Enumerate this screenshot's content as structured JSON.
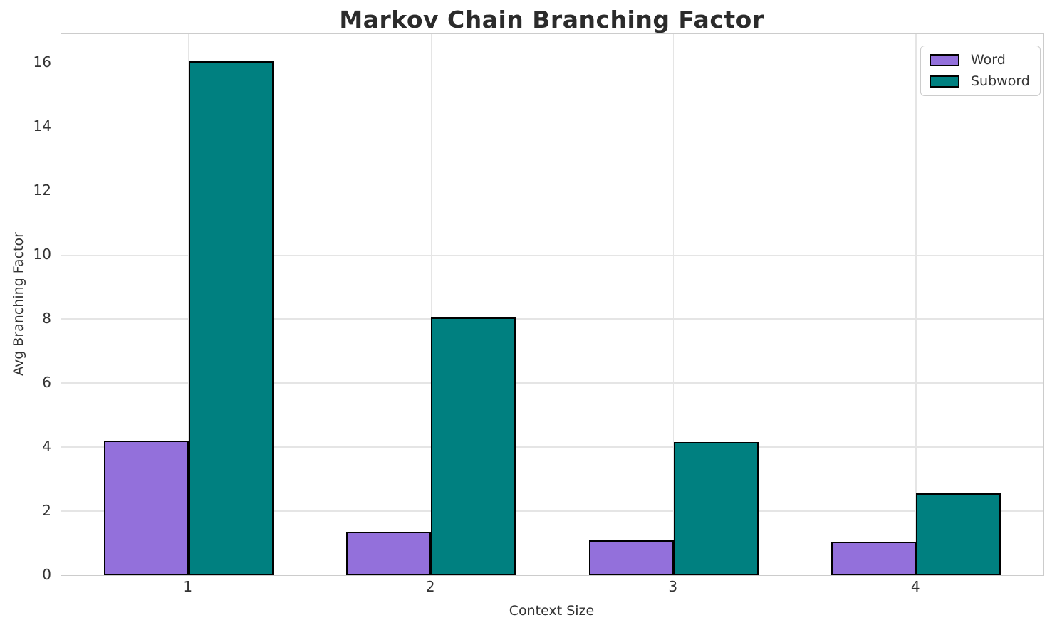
{
  "chart_data": {
    "type": "bar",
    "title": "Markov Chain Branching Factor",
    "xlabel": "Context Size",
    "ylabel": "Avg Branching Factor",
    "categories": [
      "1",
      "2",
      "3",
      "4"
    ],
    "series": [
      {
        "name": "Word",
        "color": "#9370DB",
        "values": [
          4.2,
          1.35,
          1.1,
          1.05
        ]
      },
      {
        "name": "Subword",
        "color": "#008080",
        "values": [
          16.05,
          8.05,
          4.15,
          2.55
        ]
      }
    ],
    "ylim": [
      0,
      16.9
    ],
    "yticks": [
      0,
      2,
      4,
      6,
      8,
      10,
      12,
      14,
      16
    ],
    "grid": true,
    "legend_position": "upper right",
    "bar_edge_color": "#000000",
    "bar_width": 0.35
  }
}
